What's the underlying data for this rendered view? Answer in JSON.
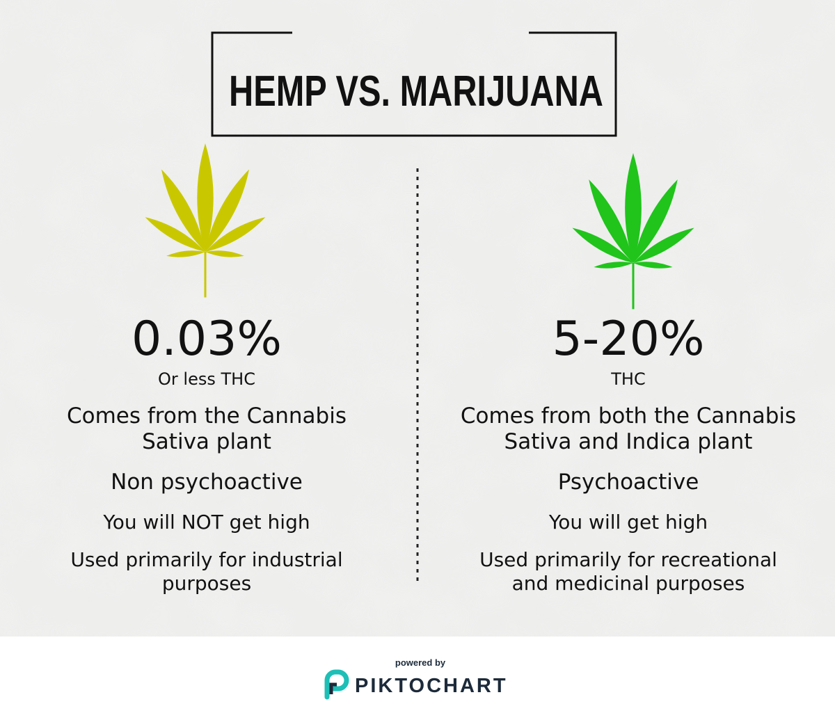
{
  "header": {
    "title": "HEMP VS. MARIJUANA"
  },
  "columns": [
    {
      "stat": "0.03%",
      "stat_note": "Or less THC",
      "origin": [
        "Comes from the Cannabis",
        "Sativa plant"
      ],
      "effect": "Non psychoactive",
      "high": "You will NOT get high",
      "use": [
        "Used primarily for industrial",
        "purposes"
      ]
    },
    {
      "stat": "5-20%",
      "stat_note": "THC",
      "origin": [
        "Comes from both the Cannabis",
        "Sativa and Indica plant"
      ],
      "effect": "Psychoactive",
      "high": "You will get high",
      "use": [
        "Used primarily for recreational",
        "and medicinal purposes"
      ]
    }
  ],
  "footer": {
    "powered_by": "powered by",
    "brand": "PIKTOCHART"
  }
}
